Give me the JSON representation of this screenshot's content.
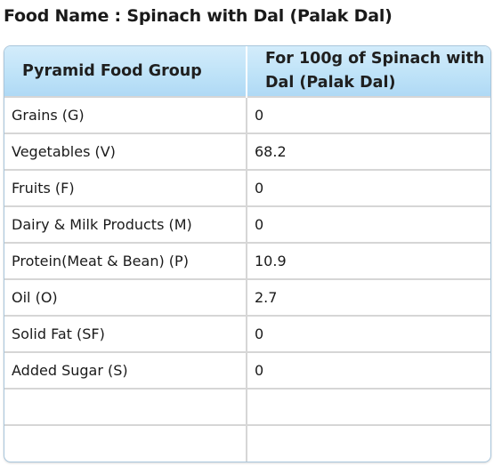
{
  "page": {
    "title": "Food Name : Spinach with Dal (Palak Dal)"
  },
  "table": {
    "headers": [
      "Pyramid Food Group",
      "For 100g of Spinach with Dal (Palak Dal)"
    ],
    "rows": [
      {
        "group": "Grains (G)",
        "value": "0"
      },
      {
        "group": "Vegetables (V)",
        "value": "68.2"
      },
      {
        "group": "Fruits (F)",
        "value": "0"
      },
      {
        "group": "Dairy & Milk Products (M)",
        "value": "0"
      },
      {
        "group": "Protein(Meat & Bean) (P)",
        "value": "10.9"
      },
      {
        "group": "Oil (O)",
        "value": "2.7"
      },
      {
        "group": "Solid Fat (SF)",
        "value": "0"
      },
      {
        "group": "Added Sugar (S)",
        "value": "0"
      },
      {
        "group": "",
        "value": ""
      },
      {
        "group": "",
        "value": ""
      }
    ]
  },
  "colors": {
    "header_bg": "#bfe3f8",
    "border": "#d6d6d6",
    "outer_border": "#a9c6dc"
  }
}
